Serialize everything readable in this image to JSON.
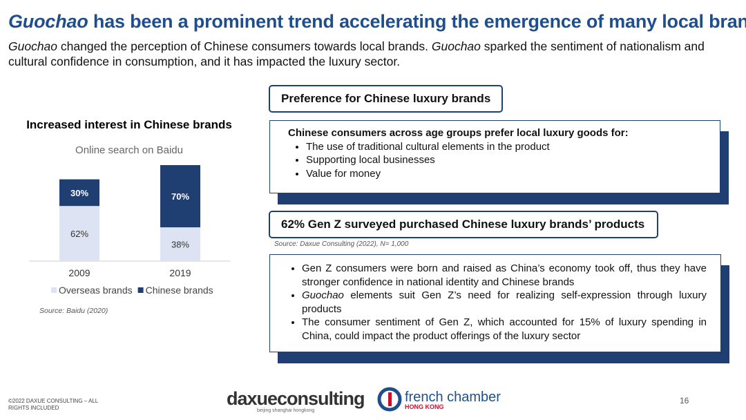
{
  "title": [
    {
      "text": "Guochao",
      "italic": true
    },
    {
      "text": " has been a prominent trend accelerating the emergence of many local brands",
      "italic": false
    }
  ],
  "subtitle": [
    {
      "text": "Guochao",
      "italic": true
    },
    {
      "text": " changed the perception of Chinese consumers towards local brands. ",
      "italic": false
    },
    {
      "text": "Guochao",
      "italic": true
    },
    {
      "text": " sparked the sentiment of nationalism and cultural confidence in consumption, and it has impacted the luxury sector.",
      "italic": false
    }
  ],
  "chart_data": {
    "type": "stacked_bar",
    "title": "Increased interest in Chinese brands",
    "subtitle": "Online search on Baidu",
    "categories": [
      "2009",
      "2019"
    ],
    "series": [
      {
        "name": "Overseas brands",
        "color": "#dde3f3",
        "values": [
          62,
          38
        ],
        "value_labels": [
          "62%",
          "38%"
        ]
      },
      {
        "name": "Chinese brands",
        "color": "#1f3f73",
        "values": [
          30,
          70
        ],
        "value_labels": [
          "30%",
          "70%"
        ]
      }
    ],
    "source": "Source: Baidu (2020)"
  },
  "panel1": {
    "header": "Preference for Chinese luxury brands",
    "lead": "Chinese consumers across age groups prefer local luxury goods for:",
    "bullets": [
      "The use of traditional cultural elements in the product",
      "Supporting local businesses",
      "Value for money"
    ]
  },
  "panel2": {
    "header": "62% Gen Z surveyed purchased Chinese luxury brands’ products",
    "source": "Source: Daxue Consulting (2022), N= 1,000",
    "bullets": [
      [
        {
          "text": "Gen Z consumers were born and raised as China’s economy took off, thus they have stronger confidence in national identity and Chinese brands",
          "italic": false
        }
      ],
      [
        {
          "text": "Guochao",
          "italic": true
        },
        {
          "text": " elements suit Gen Z’s need for realizing self-expression through luxury products",
          "italic": false
        }
      ],
      [
        {
          "text": "The consumer sentiment of Gen Z, which accounted for 15% of luxury spending in China, could impact the product offerings of the luxury sector",
          "italic": false
        }
      ]
    ]
  },
  "footer": {
    "copyright": "©2022 DAXUE CONSULTING – ALL RIGHTS INCLUDED",
    "logo1": "daxueconsulting",
    "logo1_tagline": "beijing shanghai hongkong",
    "logo2": "french chamber",
    "logo2_sub": "HONG KONG",
    "page": "16"
  }
}
